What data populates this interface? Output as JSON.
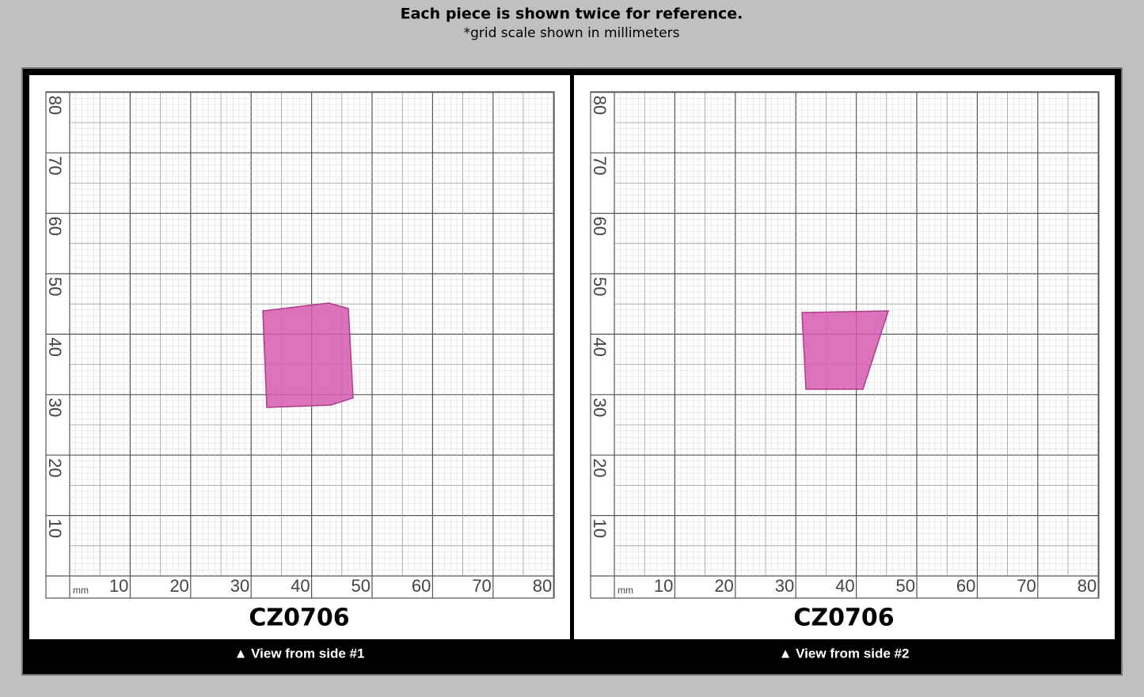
{
  "header": {
    "title": "Each piece is shown twice for reference.",
    "subtitle": "*grid scale shown in millimeters"
  },
  "panels": [
    {
      "unit": "mm",
      "x_labels": [
        "10",
        "20",
        "30",
        "40",
        "50",
        "60",
        "70",
        "80"
      ],
      "y_labels": [
        "10",
        "20",
        "30",
        "40",
        "50",
        "60",
        "70",
        "80"
      ],
      "label": "CZ0706",
      "caption": "▲ View from side #1"
    },
    {
      "unit": "mm",
      "x_labels": [
        "10",
        "20",
        "30",
        "40",
        "50",
        "60",
        "70",
        "80"
      ],
      "y_labels": [
        "10",
        "20",
        "30",
        "40",
        "50",
        "60",
        "70",
        "80"
      ],
      "label": "CZ0706",
      "caption": "▲ View from side #2"
    }
  ]
}
